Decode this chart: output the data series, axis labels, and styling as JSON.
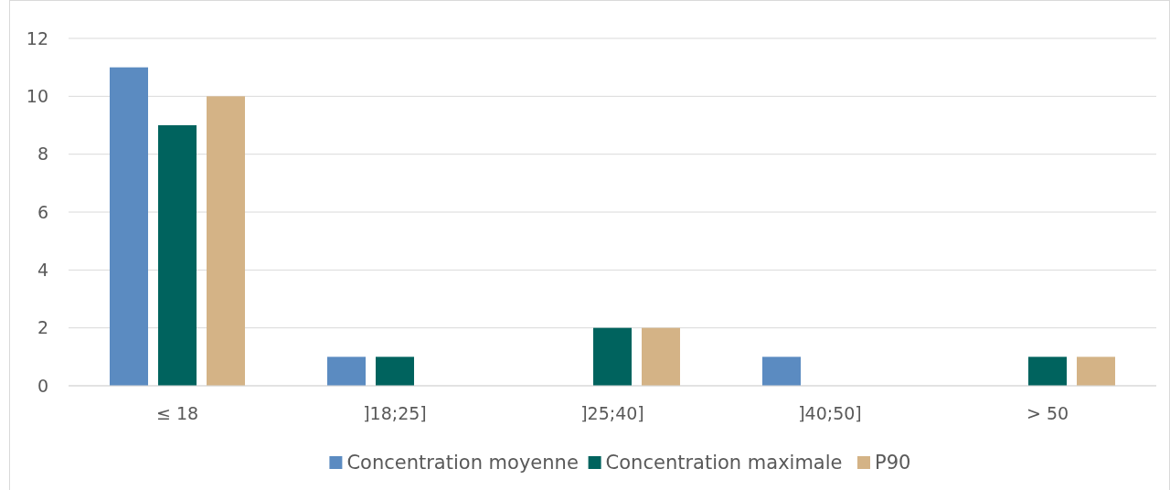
{
  "chart_data": {
    "type": "bar",
    "categories": [
      "≤ 18",
      "]18;25]",
      "]25;40]",
      "]40;50]",
      "> 50"
    ],
    "series": [
      {
        "name": "Concentration moyenne",
        "color": "#5b8bc1",
        "values": [
          11,
          1,
          0,
          1,
          0
        ]
      },
      {
        "name": "Concentration maximale",
        "color": "#00635e",
        "values": [
          9,
          1,
          2,
          0,
          1
        ]
      },
      {
        "name": "P90",
        "color": "#d4b386",
        "values": [
          10,
          0,
          2,
          0,
          1
        ]
      }
    ],
    "ylim": [
      0,
      12
    ],
    "yticks": [
      0,
      2,
      4,
      6,
      8,
      10,
      12
    ],
    "grid": "y",
    "legend": "bottom"
  }
}
